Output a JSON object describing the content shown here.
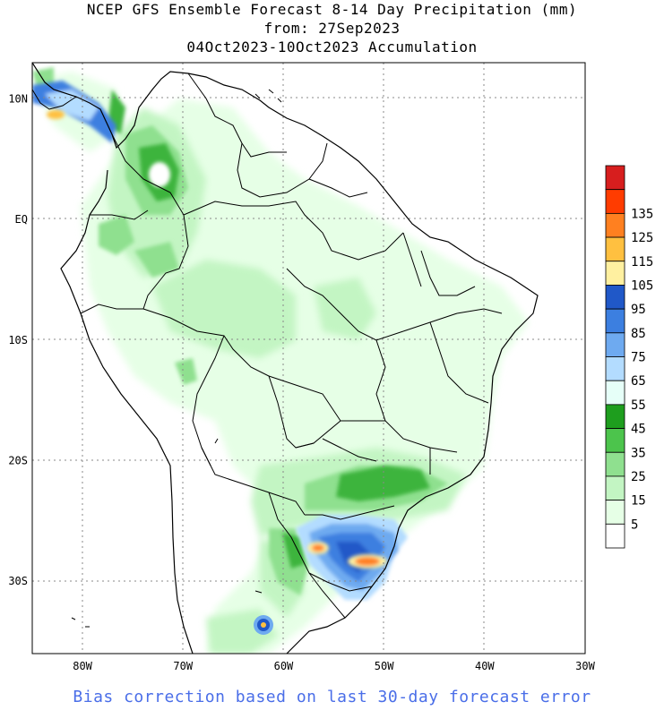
{
  "title": {
    "line1": "NCEP GFS Ensemble Forecast 8-14 Day Precipitation (mm)",
    "line2": "from: 27Sep2023",
    "line3": "04Oct2023-10Oct2023 Accumulation"
  },
  "footer": "Bias correction based on last 30-day forecast error",
  "axes": {
    "lon_labels": [
      "80W",
      "70W",
      "60W",
      "50W",
      "40W",
      "30W"
    ],
    "lat_labels": [
      "10N",
      "EQ",
      "10S",
      "20S",
      "30S"
    ],
    "lon_range": [
      -85,
      -30
    ],
    "lat_range": [
      -36,
      13
    ]
  },
  "legend": {
    "labels": [
      "5",
      "15",
      "25",
      "35",
      "45",
      "55",
      "65",
      "75",
      "85",
      "95",
      "105",
      "115",
      "125",
      "135"
    ],
    "colors": [
      "#ffffff",
      "#e6ffe6",
      "#c3f5c3",
      "#8fe08f",
      "#4cc44c",
      "#1e9e1e",
      "#e6fff8",
      "#b3dcff",
      "#6eaaf0",
      "#3c7fe0",
      "#2058c8",
      "#fff0a0",
      "#ffc040",
      "#ff8020",
      "#ff3c00",
      "#d71e1e"
    ]
  },
  "colors": {
    "map_border": "#000000",
    "grid": "#888888"
  }
}
